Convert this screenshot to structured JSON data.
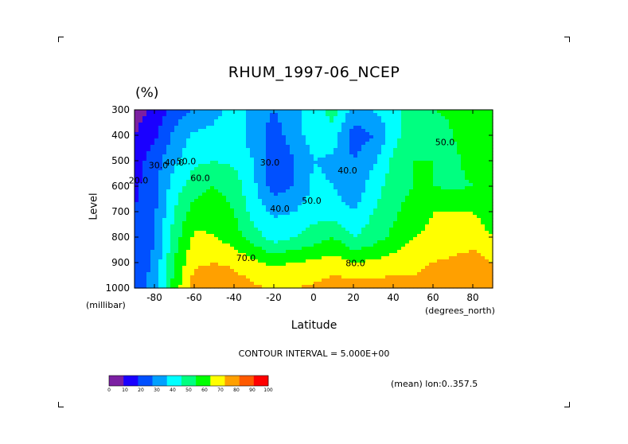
{
  "page": {
    "title": "RHUM_1997-06_NCEP",
    "units": "(%)",
    "contour_interval": "CONTOUR INTERVAL = 5.000E+00",
    "mean_note": "(mean) lon:0..357.5"
  },
  "chart_data": {
    "type": "heatmap",
    "title": "RHUM_1997-06_NCEP",
    "xlabel": "Latitude",
    "ylabel": "Level",
    "x_unit_label": "(degrees_north)",
    "y_unit_label": "(millibar)",
    "units": "(%)",
    "xlim": [
      -90,
      90
    ],
    "ylim": [
      1000,
      300
    ],
    "x_ticks": [
      -80,
      -60,
      -40,
      -20,
      0,
      20,
      40,
      60,
      80
    ],
    "x_tick_labels": [
      "-80",
      "-60",
      "-40",
      "-20",
      "0",
      "20",
      "40",
      "60",
      "80"
    ],
    "y_ticks": [
      300,
      400,
      500,
      600,
      700,
      800,
      900,
      1000
    ],
    "y_tick_labels": [
      "300",
      "400",
      "500",
      "600",
      "700",
      "800",
      "900",
      "1000"
    ],
    "lat": [
      -90,
      -80,
      -70,
      -60,
      -50,
      -40,
      -30,
      -20,
      -10,
      0,
      10,
      20,
      30,
      40,
      50,
      60,
      70,
      80,
      90
    ],
    "levels": [
      300,
      400,
      500,
      600,
      700,
      800,
      900,
      1000
    ],
    "values": [
      [
        5,
        12,
        25,
        30,
        38,
        42,
        38,
        30,
        38,
        45,
        55,
        36,
        40,
        46,
        55,
        60,
        62,
        66,
        70
      ],
      [
        10,
        18,
        32,
        42,
        42,
        45,
        35,
        25,
        35,
        45,
        45,
        25,
        30,
        45,
        60,
        52,
        60,
        66,
        70
      ],
      [
        15,
        25,
        38,
        48,
        50,
        48,
        40,
        20,
        30,
        40,
        38,
        30,
        38,
        52,
        60,
        60,
        58,
        63,
        68
      ],
      [
        18,
        26,
        45,
        55,
        60,
        55,
        42,
        25,
        30,
        42,
        40,
        32,
        45,
        55,
        60,
        60,
        58,
        60,
        65
      ],
      [
        20,
        28,
        50,
        65,
        68,
        60,
        45,
        38,
        40,
        45,
        45,
        40,
        50,
        58,
        65,
        70,
        70,
        70,
        65
      ],
      [
        20,
        30,
        55,
        72,
        70,
        65,
        55,
        45,
        50,
        55,
        60,
        50,
        55,
        62,
        70,
        72,
        74,
        75,
        70
      ],
      [
        22,
        32,
        60,
        78,
        80,
        78,
        72,
        68,
        70,
        72,
        75,
        70,
        72,
        75,
        78,
        80,
        82,
        85,
        80
      ],
      [
        25,
        35,
        65,
        85,
        90,
        86,
        82,
        78,
        80,
        82,
        85,
        86,
        85,
        85,
        82,
        84,
        86,
        88,
        88
      ]
    ],
    "contour_labels": [
      {
        "text": "30.0",
        "lat": -78,
        "level": 520
      },
      {
        "text": "40.0",
        "lat": -70,
        "level": 510
      },
      {
        "text": "50.0",
        "lat": -64,
        "level": 505
      },
      {
        "text": "60.0",
        "lat": -57,
        "level": 570
      },
      {
        "text": "30.0",
        "lat": -22,
        "level": 510
      },
      {
        "text": "40.0",
        "lat": -17,
        "level": 690
      },
      {
        "text": "50.0",
        "lat": -1,
        "level": 660
      },
      {
        "text": "40.0",
        "lat": 17,
        "level": 540
      },
      {
        "text": "70.0",
        "lat": -34,
        "level": 885
      },
      {
        "text": "80.0",
        "lat": 21,
        "level": 905
      },
      {
        "text": "50.0",
        "lat": 66,
        "level": 430
      },
      {
        "text": "20.0",
        "lat": -88,
        "level": 580
      }
    ],
    "colorbar": {
      "levels": [
        0,
        10,
        20,
        30,
        40,
        50,
        60,
        70,
        80,
        90,
        100
      ],
      "level_labels": [
        "0",
        "10",
        "20",
        "30",
        "40",
        "50",
        "60",
        "70",
        "80",
        "90",
        "100"
      ],
      "colors": [
        "#7b1fa2",
        "#1a00ff",
        "#0050ff",
        "#00a0ff",
        "#00ffff",
        "#00ff80",
        "#00ff00",
        "#ffff00",
        "#ffa000",
        "#ff5a00",
        "#ff0000"
      ]
    },
    "grid": false
  }
}
